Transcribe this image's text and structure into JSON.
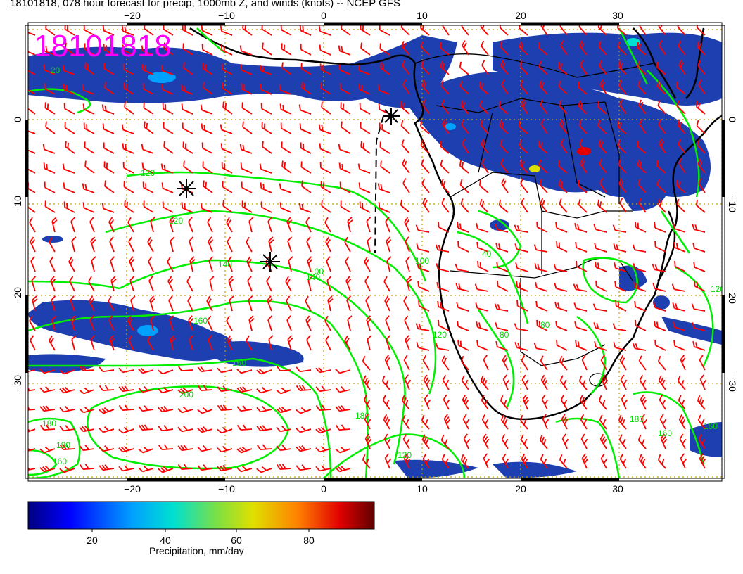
{
  "title": "18101818, 078 hour forecast for precip, 1000mb Z, and winds (knots) -- NCEP GFS",
  "stamp": "18101818",
  "axes": {
    "lon_ticks": [
      "−20",
      "−10",
      "0",
      "10",
      "20",
      "30"
    ],
    "lat_ticks": [
      "0",
      "−10",
      "−20",
      "−30"
    ]
  },
  "contour_labels": [
    "20",
    "120",
    "120",
    "100",
    "140",
    "140",
    "160",
    "160",
    "100",
    "120",
    "40",
    "80",
    "80",
    "200",
    "180",
    "180",
    "160",
    "120",
    "180",
    "160",
    "160",
    "120",
    "180"
  ],
  "colorbar": {
    "ticks": [
      "20",
      "40",
      "60",
      "80"
    ],
    "caption": "Precipitation, mm/day"
  },
  "colors": {
    "precip_low": "#1e3fb0",
    "contour": "#00ee00",
    "wind_barb": "#ff0000",
    "coast": "#000000",
    "grid": "#c8a000",
    "stamp": "#ff00ff"
  },
  "icons": [
    "tropical-storm-symbol",
    "tropical-storm-symbol",
    "tropical-storm-symbol"
  ]
}
